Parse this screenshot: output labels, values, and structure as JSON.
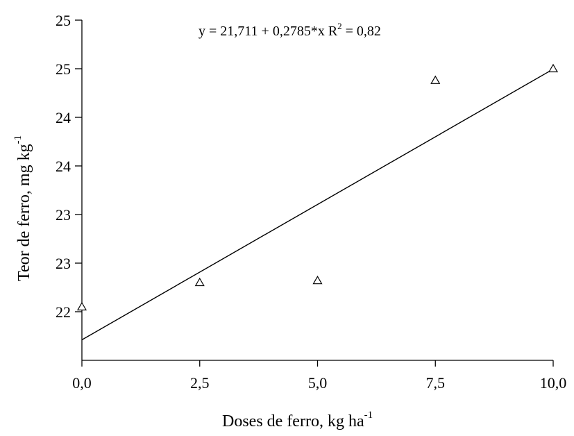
{
  "chart_data": {
    "type": "scatter",
    "title": "",
    "xlabel": "Doses de ferro, kg ha",
    "xlabel_sup": "-1",
    "ylabel": "Teor de ferro, mg kg",
    "ylabel_sup": "-1",
    "equation": {
      "prefix": "y = 21,711 + 0,2785*x   R",
      "sup": "2",
      "suffix": " = 0,82",
      "intercept": 21.711,
      "slope": 0.2785,
      "r2": 0.82
    },
    "xlim": [
      0,
      10
    ],
    "ylim": [
      21.5,
      25.0
    ],
    "x_ticks": [
      {
        "value": 0,
        "label": "0,0"
      },
      {
        "value": 2.5,
        "label": "2,5"
      },
      {
        "value": 5,
        "label": "5,0"
      },
      {
        "value": 7.5,
        "label": "7,5"
      },
      {
        "value": 10,
        "label": "10,0"
      }
    ],
    "y_ticks": [
      {
        "value": 22.0,
        "label": "22"
      },
      {
        "value": 22.5,
        "label": "23"
      },
      {
        "value": 23.0,
        "label": "23"
      },
      {
        "value": 23.5,
        "label": "24"
      },
      {
        "value": 24.0,
        "label": "24"
      },
      {
        "value": 24.5,
        "label": "25"
      },
      {
        "value": 25.0,
        "label": "25"
      }
    ],
    "series": [
      {
        "marker": "triangle-open",
        "points": [
          {
            "x": 0,
            "y": 22.05
          },
          {
            "x": 2.5,
            "y": 22.3
          },
          {
            "x": 5,
            "y": 22.32
          },
          {
            "x": 7.5,
            "y": 24.38
          },
          {
            "x": 10,
            "y": 24.5
          }
        ]
      }
    ],
    "fit_line": {
      "x": [
        0,
        10
      ],
      "y": [
        21.711,
        24.496
      ]
    },
    "grid": false,
    "colors": {
      "ink": "#000000",
      "background": "#ffffff"
    }
  }
}
